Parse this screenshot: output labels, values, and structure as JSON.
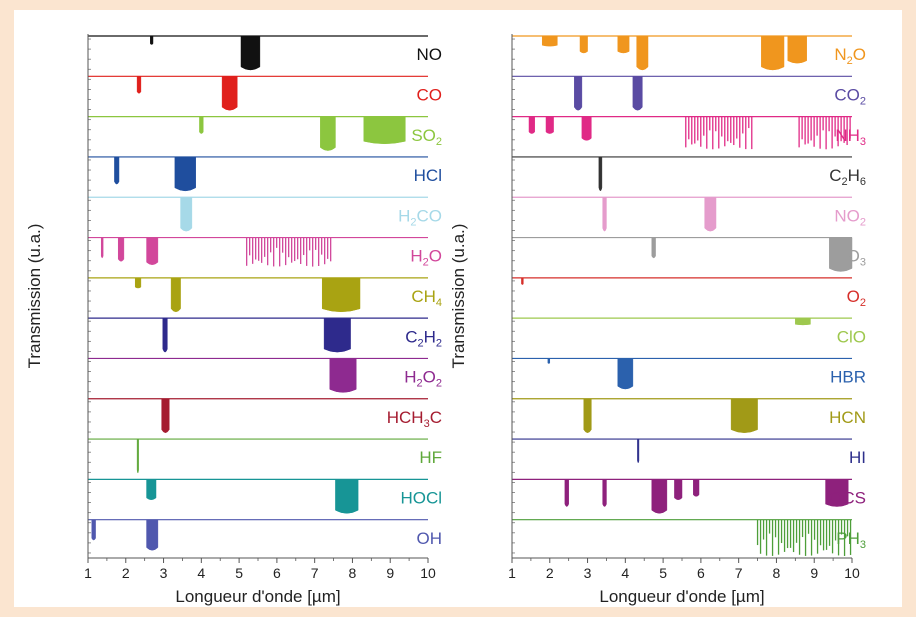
{
  "chart_data": [
    {
      "type": "band-spectra",
      "xlabel": "Longueur d'onde [µm]",
      "ylabel": "Transmission (u.a.)",
      "xlim": [
        1,
        10
      ],
      "xticks": [
        "1",
        "2",
        "3",
        "4",
        "5",
        "6",
        "7",
        "8",
        "9",
        "10"
      ],
      "series": [
        {
          "name": "NO",
          "sub": "",
          "color": "#111111",
          "bands": [
            [
              2.65,
              2.72,
              0.25
            ],
            [
              5.05,
              5.55,
              1.0
            ]
          ]
        },
        {
          "name": "CO",
          "sub": "",
          "color": "#e0201c",
          "bands": [
            [
              2.3,
              2.4,
              0.5
            ],
            [
              4.55,
              4.95,
              1.0
            ]
          ]
        },
        {
          "name": "SO",
          "sub": "2",
          "color": "#8cc63f",
          "bands": [
            [
              3.95,
              4.05,
              0.5
            ],
            [
              7.15,
              7.55,
              1.0
            ],
            [
              8.3,
              9.4,
              0.8
            ]
          ]
        },
        {
          "name": "HCl",
          "sub": "",
          "color": "#1f4e9e",
          "bands": [
            [
              1.7,
              1.82,
              0.8
            ],
            [
              3.3,
              3.85,
              1.0
            ]
          ]
        },
        {
          "name": "H",
          "sub": "2",
          "color": "#a6d9e8",
          "bands": [
            [
              3.45,
              3.75,
              1.0
            ]
          ],
          "suffix": "CO"
        },
        {
          "name": "H",
          "sub": "2",
          "color": "#d2479b",
          "bands": [
            [
              1.35,
              1.4,
              0.6
            ],
            [
              1.8,
              1.95,
              0.7
            ],
            [
              2.55,
              2.85,
              0.8
            ],
            [
              5.2,
              7.5,
              0.8
            ]
          ],
          "suffix": "O",
          "comb": true
        },
        {
          "name": "CH",
          "sub": "4",
          "color": "#a9a312",
          "bands": [
            [
              2.25,
              2.4,
              0.3
            ],
            [
              3.2,
              3.45,
              1.0
            ],
            [
              7.2,
              8.2,
              1.0
            ]
          ]
        },
        {
          "name": "C",
          "sub": "2",
          "color": "#2e2a8c",
          "bands": [
            [
              2.98,
              3.1,
              1.0
            ],
            [
              7.25,
              7.95,
              1.0
            ]
          ],
          "suffix": "H",
          "sub2": "2"
        },
        {
          "name": "H",
          "sub": "2",
          "color": "#8e2a90",
          "bands": [
            [
              7.4,
              8.1,
              1.0
            ]
          ],
          "suffix": "O",
          "sub2": "2"
        },
        {
          "name": "HCH",
          "sub": "3",
          "color": "#a51c30",
          "bands": [
            [
              2.95,
              3.15,
              1.0
            ]
          ],
          "suffix": "C"
        },
        {
          "name": "HF",
          "sub": "",
          "color": "#5fa83a",
          "bands": [
            [
              2.3,
              2.33,
              1.0
            ]
          ]
        },
        {
          "name": "HOCl",
          "sub": "",
          "color": "#179596",
          "bands": [
            [
              2.55,
              2.8,
              0.6
            ],
            [
              7.55,
              8.15,
              1.0
            ]
          ]
        },
        {
          "name": "OH",
          "sub": "",
          "color": "#5058ae",
          "bands": [
            [
              1.1,
              1.2,
              0.6
            ],
            [
              2.55,
              2.85,
              0.9
            ]
          ]
        }
      ]
    },
    {
      "type": "band-spectra",
      "xlabel": "Longueur d'onde [µm]",
      "ylabel": "Transmission (u.a.)",
      "xlim": [
        1,
        10
      ],
      "xticks": [
        "1",
        "2",
        "3",
        "4",
        "5",
        "6",
        "7",
        "8",
        "9",
        "10"
      ],
      "series": [
        {
          "name": "N",
          "sub": "2",
          "color": "#f0961e",
          "bands": [
            [
              1.8,
              2.2,
              0.3
            ],
            [
              2.8,
              3.0,
              0.5
            ],
            [
              3.8,
              4.1,
              0.5
            ],
            [
              4.3,
              4.6,
              1.0
            ],
            [
              7.6,
              8.2,
              1.0
            ],
            [
              8.3,
              8.8,
              0.8
            ]
          ],
          "suffix": "O"
        },
        {
          "name": "CO",
          "sub": "2",
          "color": "#5a4ba3",
          "bands": [
            [
              2.65,
              2.85,
              1.0
            ],
            [
              4.2,
              4.45,
              1.0
            ]
          ]
        },
        {
          "name": "NH",
          "sub": "3",
          "color": "#e02a86",
          "bands": [
            [
              1.45,
              1.6,
              0.5
            ],
            [
              1.9,
              2.1,
              0.5
            ],
            [
              2.85,
              3.1,
              0.7
            ],
            [
              5.6,
              7.4,
              0.9
            ],
            [
              8.6,
              10.0,
              0.9
            ]
          ],
          "comb": true
        },
        {
          "name": "C",
          "sub": "2",
          "color": "#333333",
          "bands": [
            [
              3.3,
              3.38,
              1.0
            ]
          ],
          "suffix": "H",
          "sub2": "6"
        },
        {
          "name": "NO",
          "sub": "2",
          "color": "#e59ccc",
          "bands": [
            [
              3.4,
              3.5,
              1.0
            ],
            [
              6.1,
              6.4,
              1.0
            ]
          ]
        },
        {
          "name": "O",
          "sub": "3",
          "color": "#9d9d9d",
          "bands": [
            [
              4.7,
              4.8,
              0.6
            ],
            [
              9.4,
              10.0,
              1.0
            ]
          ]
        },
        {
          "name": "O",
          "sub": "2",
          "color": "#d62f2a",
          "bands": [
            [
              1.25,
              1.3,
              0.2
            ]
          ]
        },
        {
          "name": "ClO",
          "sub": "",
          "color": "#9ec84e",
          "bands": [
            [
              8.5,
              8.9,
              0.2
            ]
          ]
        },
        {
          "name": "HBR",
          "sub": "",
          "color": "#2b61ad",
          "bands": [
            [
              1.95,
              2.0,
              0.15
            ],
            [
              3.8,
              4.2,
              0.9
            ]
          ]
        },
        {
          "name": "HCN",
          "sub": "",
          "color": "#a19a17",
          "bands": [
            [
              2.9,
              3.1,
              1.0
            ],
            [
              6.8,
              7.5,
              1.0
            ]
          ]
        },
        {
          "name": "HI",
          "sub": "",
          "color": "#2d2f8b",
          "bands": [
            [
              4.32,
              4.36,
              0.7
            ]
          ]
        },
        {
          "name": "OCS",
          "sub": "",
          "color": "#8e217c",
          "bands": [
            [
              2.4,
              2.5,
              0.8
            ],
            [
              3.4,
              3.5,
              0.8
            ],
            [
              4.7,
              5.1,
              1.0
            ],
            [
              5.3,
              5.5,
              0.6
            ],
            [
              5.8,
              5.95,
              0.5
            ],
            [
              9.3,
              9.9,
              0.8
            ]
          ]
        },
        {
          "name": "PH",
          "sub": "3",
          "color": "#4d9e39",
          "bands": [
            [
              7.5,
              10.0,
              1.0
            ]
          ],
          "comb": true
        }
      ]
    }
  ]
}
